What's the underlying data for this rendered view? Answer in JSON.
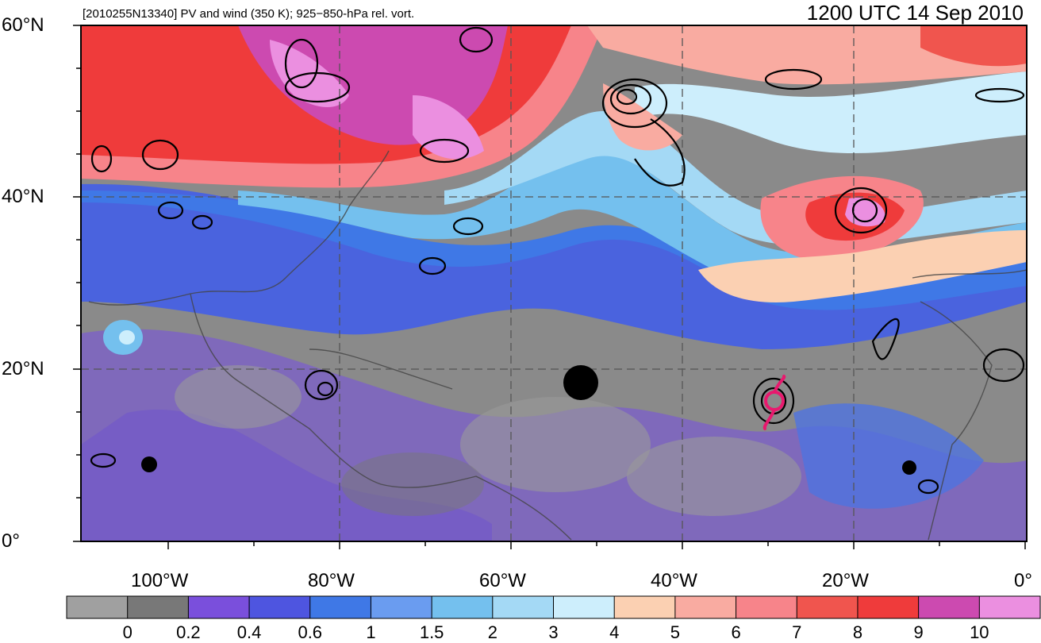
{
  "header": {
    "title": "[2010255N13340] PV and wind (350 K); 925−850-hPa rel. vort.",
    "time": "1200 UTC 14 Sep 2010"
  },
  "axes": {
    "lat_labels": [
      "60°N",
      "40°N",
      "20°N",
      "0°"
    ],
    "lon_labels": [
      "100°W",
      "80°W",
      "60°W",
      "40°W",
      "20°W",
      "0°"
    ]
  },
  "colorbar": {
    "tick_labels": [
      "0",
      "0.2",
      "0.4",
      "0.6",
      "1",
      "1.5",
      "2",
      "3",
      "4",
      "5",
      "6",
      "7",
      "8",
      "9",
      "10"
    ],
    "colors": [
      "#a0a0a0",
      "#787878",
      "#7a4fdc",
      "#4e55e0",
      "#3f78e6",
      "#6a9cf0",
      "#74c0ee",
      "#a4d9f5",
      "#cdeefc",
      "#fbd0b2",
      "#f9aba1",
      "#f7848a",
      "#f0554e",
      "#ef3b3b",
      "#cc4ab0",
      "#eb8fe0"
    ]
  },
  "storm_symbol": {
    "icon": "tropical-cyclone-icon",
    "color": "#e8196e"
  }
}
